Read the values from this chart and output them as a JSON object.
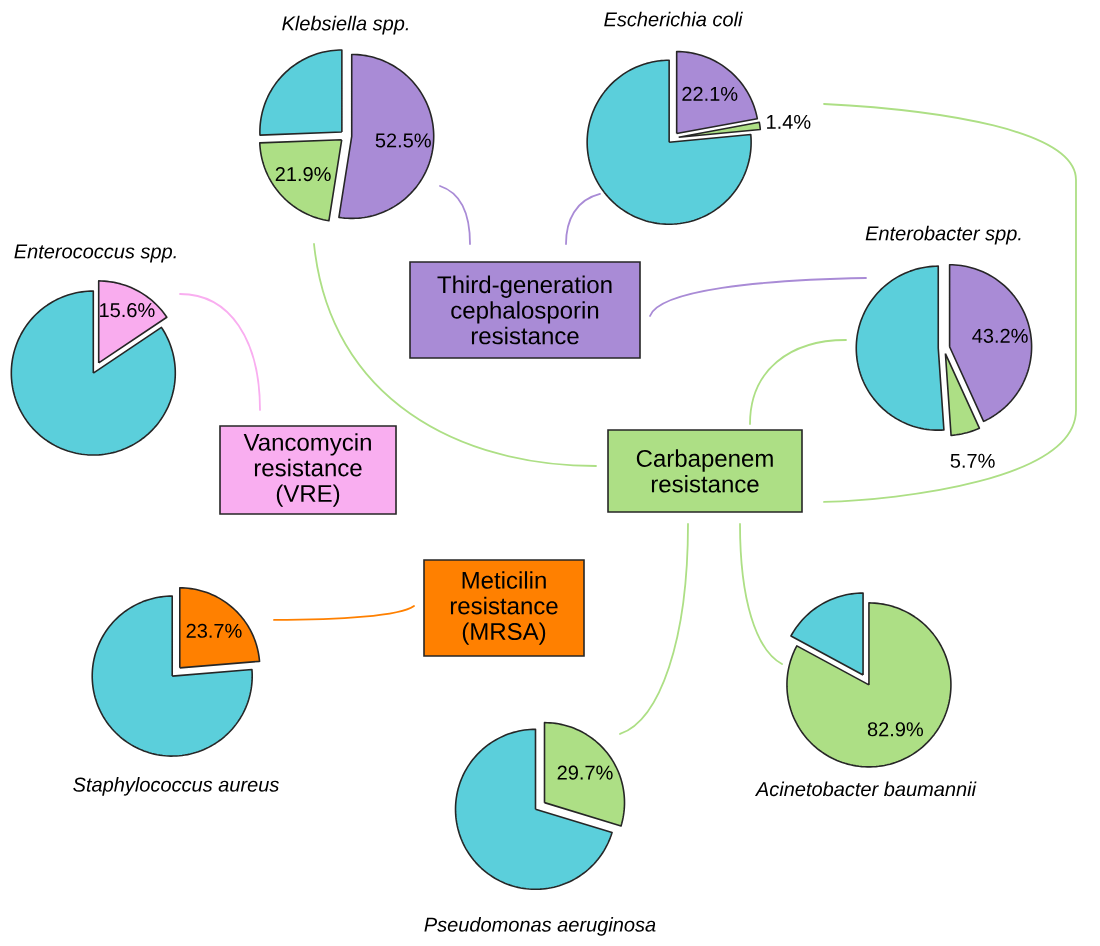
{
  "chart_data": [
    {
      "type": "pie",
      "title": "Klebsiella spp.",
      "categories": [
        null,
        null,
        null
      ],
      "values": [
        52.5,
        21.9,
        25.6
      ],
      "colors": [
        "#a98bd6",
        "#addf85",
        "#5bcfdb"
      ],
      "value_labels": [
        "52.5%",
        "21.9%",
        null
      ]
    },
    {
      "type": "pie",
      "title": "Escherichia coli",
      "categories": [
        null,
        null,
        null
      ],
      "values": [
        22.1,
        1.4,
        76.5
      ],
      "colors": [
        "#a98bd6",
        "#addf85",
        "#5bcfdb"
      ],
      "value_labels": [
        "22.1%",
        "1.4%",
        null
      ]
    },
    {
      "type": "pie",
      "title": "Enterococcus spp.",
      "categories": [
        null,
        null
      ],
      "values": [
        15.6,
        84.4
      ],
      "colors": [
        "#f9acee",
        "#5bcfdb"
      ],
      "value_labels": [
        "15.6%",
        null
      ]
    },
    {
      "type": "pie",
      "title": "Enterobacter spp.",
      "categories": [
        null,
        null,
        null
      ],
      "values": [
        43.2,
        5.7,
        51.1
      ],
      "colors": [
        "#a98bd6",
        "#addf85",
        "#5bcfdb"
      ],
      "value_labels": [
        "43.2%",
        "5.7%",
        null
      ]
    },
    {
      "type": "pie",
      "title": "Staphylococcus aureus",
      "categories": [
        null,
        null
      ],
      "values": [
        23.7,
        76.3
      ],
      "colors": [
        "#ff8000",
        "#5bcfdb"
      ],
      "value_labels": [
        "23.7%",
        null
      ]
    },
    {
      "type": "pie",
      "title": "Pseudomonas aeruginosa",
      "categories": [
        null,
        null
      ],
      "values": [
        29.7,
        70.3
      ],
      "colors": [
        "#addf85",
        "#5bcfdb"
      ],
      "value_labels": [
        "29.7%",
        null
      ]
    },
    {
      "type": "pie",
      "title": "Acinetobacter baumannii",
      "categories": [
        null,
        null
      ],
      "values": [
        82.9,
        17.1
      ],
      "colors": [
        "#addf85",
        "#5bcfdb"
      ],
      "value_labels": [
        "82.9%",
        null
      ]
    },
    {
      "type": "other",
      "annotations": [
        "Third-generation cephalosporin resistance",
        "Carbapenem resistance",
        "Vancomycin resistance (VRE)",
        "Meticilin resistance (MRSA)"
      ],
      "colors": [
        "#a98bd6",
        "#addf85",
        "#f9aef0",
        "#ff8000"
      ]
    }
  ]
}
